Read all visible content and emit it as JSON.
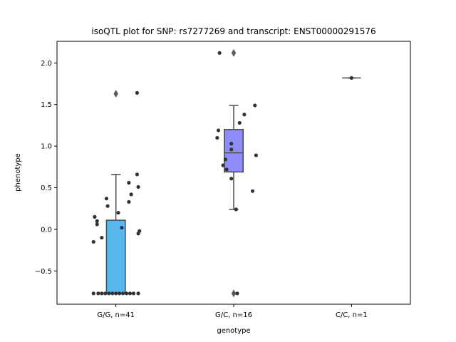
{
  "chart_data": {
    "type": "box",
    "title": "isoQTL plot for SNP: rs7277269 and transcript: ENST00000291576",
    "xlabel": "genotype",
    "ylabel": "phenotype",
    "ylim": [
      -0.9,
      2.26
    ],
    "yticks": [
      -0.5,
      0.0,
      0.5,
      1.0,
      1.5,
      2.0
    ],
    "ytick_labels": [
      "−0.5",
      "0.0",
      "0.5",
      "1.0",
      "1.5",
      "2.0"
    ],
    "categories": [
      "G/G, n=41",
      "G/C, n=16",
      "C/C, n=1"
    ],
    "box_colors": [
      "#57b7ec",
      "#8d8cf9",
      "#ffffff"
    ],
    "boxes": [
      {
        "category": "G/G, n=41",
        "whislo": -0.77,
        "q1": -0.77,
        "median": -0.77,
        "q3": 0.11,
        "whishi": 0.66,
        "fliers": [
          1.63
        ]
      },
      {
        "category": "G/C, n=16",
        "whislo": 0.24,
        "q1": 0.69,
        "median": 0.92,
        "q3": 1.2,
        "whishi": 1.49,
        "fliers": [
          2.12,
          -0.77
        ]
      },
      {
        "category": "C/C, n=1",
        "whislo": 1.82,
        "q1": 1.82,
        "median": 1.82,
        "q3": 1.82,
        "whishi": 1.82,
        "fliers": []
      }
    ],
    "points": [
      [
        {
          "y": -0.77,
          "jitter": -0.19
        },
        {
          "y": -0.77,
          "jitter": -0.15
        },
        {
          "y": -0.77,
          "jitter": -0.12
        },
        {
          "y": -0.77,
          "jitter": -0.09
        },
        {
          "y": -0.77,
          "jitter": -0.06
        },
        {
          "y": -0.77,
          "jitter": -0.03
        },
        {
          "y": -0.77,
          "jitter": 0.0
        },
        {
          "y": -0.77,
          "jitter": 0.03
        },
        {
          "y": -0.77,
          "jitter": 0.06
        },
        {
          "y": -0.77,
          "jitter": 0.09
        },
        {
          "y": -0.77,
          "jitter": 0.12
        },
        {
          "y": -0.77,
          "jitter": 0.15
        },
        {
          "y": -0.77,
          "jitter": 0.19
        },
        {
          "y": -0.15,
          "jitter": -0.19
        },
        {
          "y": -0.1,
          "jitter": -0.12
        },
        {
          "y": -0.05,
          "jitter": 0.19
        },
        {
          "y": -0.02,
          "jitter": 0.2
        },
        {
          "y": 0.02,
          "jitter": 0.05
        },
        {
          "y": 0.06,
          "jitter": -0.16
        },
        {
          "y": 0.1,
          "jitter": -0.16
        },
        {
          "y": 0.15,
          "jitter": -0.18
        },
        {
          "y": 0.2,
          "jitter": 0.02
        },
        {
          "y": 0.28,
          "jitter": -0.07
        },
        {
          "y": 0.33,
          "jitter": 0.11
        },
        {
          "y": 0.37,
          "jitter": -0.08
        },
        {
          "y": 0.42,
          "jitter": 0.13
        },
        {
          "y": 0.51,
          "jitter": 0.19
        },
        {
          "y": 0.56,
          "jitter": 0.11
        },
        {
          "y": 0.66,
          "jitter": 0.18
        },
        {
          "y": 1.64,
          "jitter": 0.18
        }
      ],
      [
        {
          "y": -0.77,
          "jitter": 0.03
        },
        {
          "y": 0.24,
          "jitter": 0.02
        },
        {
          "y": 0.46,
          "jitter": 0.16
        },
        {
          "y": 0.61,
          "jitter": -0.02
        },
        {
          "y": 0.72,
          "jitter": -0.06
        },
        {
          "y": 0.77,
          "jitter": -0.09
        },
        {
          "y": 0.84,
          "jitter": -0.07
        },
        {
          "y": 0.89,
          "jitter": 0.19
        },
        {
          "y": 0.96,
          "jitter": -0.02
        },
        {
          "y": 1.03,
          "jitter": -0.02
        },
        {
          "y": 1.1,
          "jitter": -0.14
        },
        {
          "y": 1.19,
          "jitter": -0.13
        },
        {
          "y": 1.28,
          "jitter": 0.05
        },
        {
          "y": 1.38,
          "jitter": 0.09
        },
        {
          "y": 1.49,
          "jitter": 0.18
        },
        {
          "y": 2.12,
          "jitter": -0.12
        }
      ],
      [
        {
          "y": 1.82,
          "jitter": 0.0
        }
      ]
    ]
  }
}
